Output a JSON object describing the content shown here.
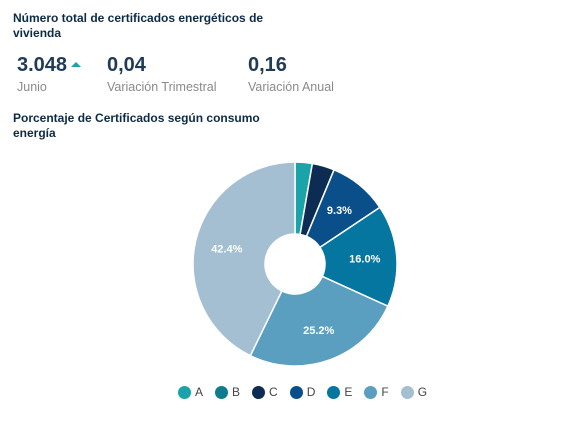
{
  "header": {
    "title": "Número total de certificados energéticos de vivienda"
  },
  "kpis": [
    {
      "value": "3.048",
      "label": "Junio",
      "trend": "up"
    },
    {
      "value": "0,04",
      "label": "Variación Trimestral"
    },
    {
      "value": "0,16",
      "label": "Variación Anual"
    }
  ],
  "chart_title": "Porcentaje de Certificados según consumo energía",
  "chart_data": {
    "type": "pie",
    "variant": "donut",
    "title": "Porcentaje de Certificados según consumo energía",
    "categories": [
      "A",
      "B",
      "C",
      "D",
      "E",
      "F",
      "G"
    ],
    "values": [
      2.7,
      0,
      3.5,
      9.3,
      16.0,
      25.2,
      42.4
    ],
    "data_labels": [
      "",
      "",
      "",
      "9.3%",
      "16.0%",
      "25.2%",
      "42.4%"
    ],
    "colors": [
      "#1aa3a9",
      "#0e7c8c",
      "#0d2c54",
      "#0a4f8a",
      "#0576a0",
      "#5b9fc0",
      "#a3bfd1"
    ],
    "legend_position": "bottom"
  }
}
